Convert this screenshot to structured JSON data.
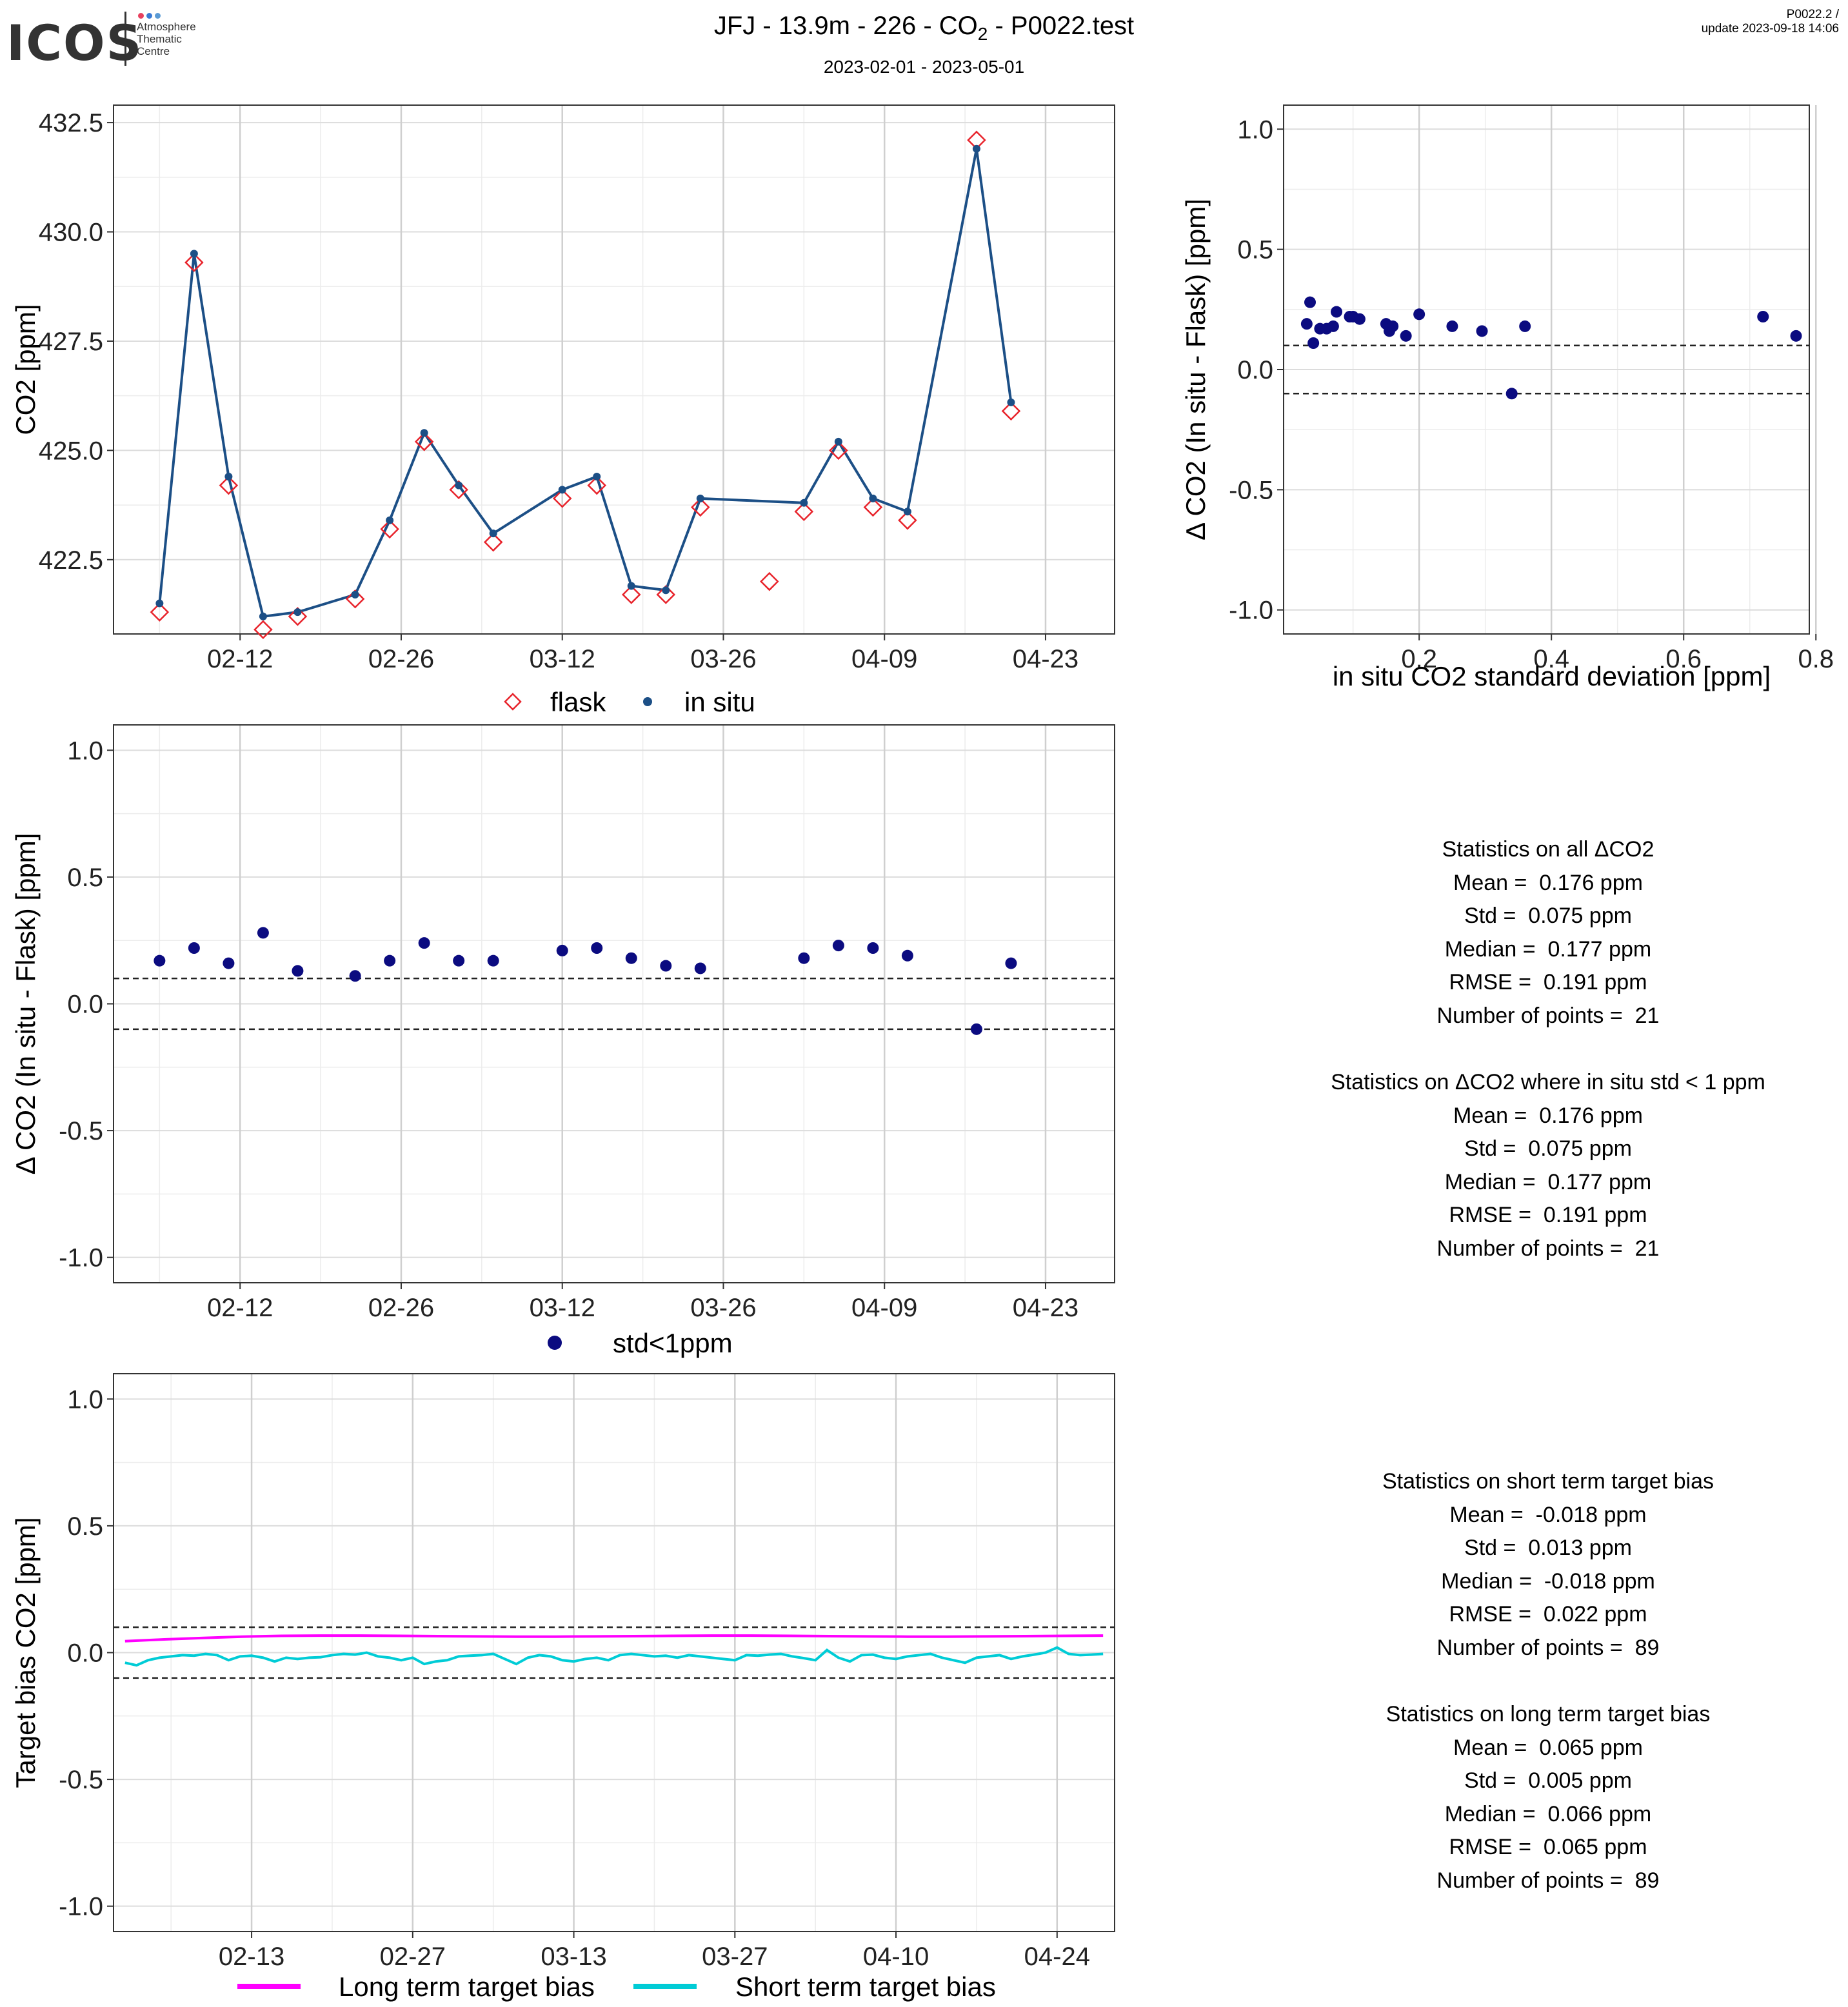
{
  "header": {
    "logo": "ICOS",
    "logo_sub": [
      "Atmosphere",
      "Thematic",
      "Centre"
    ],
    "title_prefix": "JFJ - 13.9m - 226 - CO",
    "title_subscript": "2",
    "title_suffix": " - P0022.test",
    "subtitle": "2023-02-01 - 2023-05-01",
    "corner_line1": "P0022.2 /",
    "corner_line2": "update  2023-09-18 14:06"
  },
  "colors": {
    "flask": "#e8232b",
    "insitu": "#1c4f86",
    "delta": "#0b0b80",
    "long_term": "#ff00ff",
    "short_term": "#00ccd6",
    "logo_dots": [
      "#e8415f",
      "#3a7bd5",
      "#5b9bd5"
    ]
  },
  "chart_data": [
    {
      "id": "timeseries",
      "type": "line",
      "ylabel": "CO2 [ppm]",
      "xlabel": "",
      "ylim": [
        420.8,
        432.9
      ],
      "yticks": [
        422.5,
        425.0,
        427.5,
        430.0,
        432.5
      ],
      "xlim": [
        "2023-02-01",
        "2023-04-29"
      ],
      "xticks": [
        "02-12",
        "02-26",
        "03-12",
        "03-26",
        "04-09",
        "04-23"
      ],
      "grid": true,
      "legend_position": "bottom",
      "series": [
        {
          "name": "flask",
          "marker": "open-diamond",
          "x": [
            "2023-02-05",
            "2023-02-08",
            "2023-02-11",
            "2023-02-14",
            "2023-02-17",
            "2023-02-22",
            "2023-02-25",
            "2023-02-28",
            "2023-03-03",
            "2023-03-06",
            "2023-03-12",
            "2023-03-15",
            "2023-03-18",
            "2023-03-21",
            "2023-03-24",
            "2023-03-30",
            "2023-04-02",
            "2023-04-05",
            "2023-04-08",
            "2023-04-11",
            "2023-04-17",
            "2023-04-20"
          ],
          "y": [
            421.3,
            429.3,
            424.2,
            420.9,
            421.2,
            421.6,
            423.2,
            425.2,
            424.1,
            422.9,
            423.9,
            424.2,
            421.7,
            421.7,
            423.7,
            422.0,
            423.6,
            425.0,
            423.7,
            423.4,
            432.1,
            425.9
          ]
        },
        {
          "name": "in situ",
          "marker": "filled-dot-line",
          "x": [
            "2023-02-05",
            "2023-02-08",
            "2023-02-11",
            "2023-02-14",
            "2023-02-17",
            "2023-02-22",
            "2023-02-25",
            "2023-02-28",
            "2023-03-03",
            "2023-03-06",
            "2023-03-12",
            "2023-03-15",
            "2023-03-18",
            "2023-03-21",
            "2023-03-24",
            "2023-04-02",
            "2023-04-05",
            "2023-04-08",
            "2023-04-11",
            "2023-04-17",
            "2023-04-20"
          ],
          "y": [
            421.5,
            429.5,
            424.4,
            421.2,
            421.3,
            421.7,
            423.4,
            425.4,
            424.2,
            423.1,
            424.1,
            424.4,
            421.9,
            421.8,
            423.9,
            423.8,
            425.2,
            423.9,
            423.6,
            431.9,
            426.1
          ]
        }
      ]
    },
    {
      "id": "scatter_std",
      "type": "scatter",
      "xlabel": "in situ CO2 standard deviation [ppm]",
      "ylabel": "Δ CO2 (In situ - Flask) [ppm]",
      "xlim": [
        -0.005,
        0.79
      ],
      "ylim": [
        -1.1,
        1.1
      ],
      "xticks": [
        0.2,
        0.4,
        0.6,
        0.8
      ],
      "yticks": [
        -1.0,
        -0.5,
        0.0,
        0.5,
        1.0
      ],
      "hlines": [
        0.1,
        -0.1
      ],
      "grid": true,
      "points": [
        [
          0.03,
          0.19
        ],
        [
          0.035,
          0.28
        ],
        [
          0.04,
          0.11
        ],
        [
          0.05,
          0.17
        ],
        [
          0.06,
          0.17
        ],
        [
          0.07,
          0.18
        ],
        [
          0.075,
          0.24
        ],
        [
          0.095,
          0.22
        ],
        [
          0.1,
          0.22
        ],
        [
          0.11,
          0.21
        ],
        [
          0.15,
          0.19
        ],
        [
          0.155,
          0.16
        ],
        [
          0.16,
          0.18
        ],
        [
          0.18,
          0.14
        ],
        [
          0.2,
          0.23
        ],
        [
          0.25,
          0.18
        ],
        [
          0.295,
          0.16
        ],
        [
          0.34,
          -0.1
        ],
        [
          0.36,
          0.18
        ],
        [
          0.72,
          0.22
        ],
        [
          0.77,
          0.14
        ]
      ]
    },
    {
      "id": "delta_time",
      "type": "scatter",
      "ylabel": "Δ CO2 (In situ - Flask) [ppm]",
      "xlabel": "",
      "xlim": [
        "2023-02-01",
        "2023-04-29"
      ],
      "ylim": [
        -1.1,
        1.1
      ],
      "xticks": [
        "02-12",
        "02-26",
        "03-12",
        "03-26",
        "04-09",
        "04-23"
      ],
      "yticks": [
        -1.0,
        -0.5,
        0.0,
        0.5,
        1.0
      ],
      "hlines": [
        0.1,
        -0.1
      ],
      "grid": true,
      "legend_position": "bottom",
      "series": [
        {
          "name": "std<1ppm",
          "x": [
            "2023-02-05",
            "2023-02-08",
            "2023-02-11",
            "2023-02-14",
            "2023-02-17",
            "2023-02-22",
            "2023-02-25",
            "2023-02-28",
            "2023-03-03",
            "2023-03-06",
            "2023-03-12",
            "2023-03-15",
            "2023-03-18",
            "2023-03-21",
            "2023-03-24",
            "2023-04-02",
            "2023-04-05",
            "2023-04-08",
            "2023-04-11",
            "2023-04-17",
            "2023-04-20"
          ],
          "y": [
            0.17,
            0.22,
            0.16,
            0.28,
            0.13,
            0.11,
            0.17,
            0.24,
            0.17,
            0.17,
            0.21,
            0.22,
            0.18,
            0.15,
            0.14,
            0.18,
            0.23,
            0.22,
            0.19,
            -0.1,
            0.16
          ]
        }
      ]
    },
    {
      "id": "target_bias",
      "type": "line",
      "ylabel": "Target bias CO2 [ppm]",
      "xlabel": "",
      "xlim": [
        "2023-02-01",
        "2023-04-29"
      ],
      "ylim": [
        -1.1,
        1.1
      ],
      "xticks": [
        "02-13",
        "02-27",
        "03-13",
        "03-27",
        "04-10",
        "04-24"
      ],
      "yticks": [
        -1.0,
        -0.5,
        0.0,
        0.5,
        1.0
      ],
      "hlines": [
        0.1,
        -0.1
      ],
      "grid": true,
      "legend_position": "bottom",
      "series": [
        {
          "name": "Long term target bias",
          "x_start": "2023-02-02",
          "x_end": "2023-04-28",
          "y": [
            0.045,
            0.052,
            0.058,
            0.063,
            0.066,
            0.067,
            0.067,
            0.066,
            0.065,
            0.064,
            0.063,
            0.063,
            0.064,
            0.065,
            0.066,
            0.067,
            0.067,
            0.066,
            0.065,
            0.064,
            0.063,
            0.063,
            0.064,
            0.065,
            0.066,
            0.067
          ]
        },
        {
          "name": "Short term target bias",
          "x_start": "2023-02-02",
          "x_end": "2023-04-28",
          "y": [
            -0.04,
            -0.05,
            -0.03,
            -0.02,
            -0.015,
            -0.01,
            -0.012,
            -0.005,
            -0.01,
            -0.03,
            -0.015,
            -0.012,
            -0.02,
            -0.035,
            -0.02,
            -0.025,
            -0.02,
            -0.018,
            -0.01,
            -0.005,
            -0.008,
            0.0,
            -0.015,
            -0.02,
            -0.03,
            -0.02,
            -0.045,
            -0.035,
            -0.03,
            -0.015,
            -0.012,
            -0.01,
            -0.005,
            -0.025,
            -0.045,
            -0.02,
            -0.01,
            -0.015,
            -0.03,
            -0.035,
            -0.025,
            -0.02,
            -0.03,
            -0.01,
            -0.005,
            -0.01,
            -0.015,
            -0.012,
            -0.02,
            -0.01,
            -0.015,
            -0.02,
            -0.025,
            -0.03,
            -0.01,
            -0.012,
            -0.008,
            -0.005,
            -0.015,
            -0.022,
            -0.03,
            0.01,
            -0.02,
            -0.035,
            -0.01,
            -0.008,
            -0.02,
            -0.025,
            -0.015,
            -0.01,
            -0.005,
            -0.02,
            -0.03,
            -0.04,
            -0.02,
            -0.015,
            -0.01,
            -0.025,
            -0.015,
            -0.008,
            0.0,
            0.02,
            -0.005,
            -0.01,
            -0.008,
            -0.005
          ]
        }
      ]
    }
  ],
  "stats": {
    "block1": {
      "title": "Statistics on all ΔCO2",
      "lines": [
        "Mean =  0.176 ppm",
        "Std =  0.075 ppm",
        "Median =  0.177 ppm",
        "RMSE =  0.191 ppm",
        "Number of points =  21"
      ]
    },
    "block2": {
      "title": "Statistics on ΔCO2 where in situ std < 1 ppm",
      "lines": [
        "Mean =  0.176 ppm",
        "Std =  0.075 ppm",
        "Median =  0.177 ppm",
        "RMSE =  0.191 ppm",
        "Number of points =  21"
      ]
    },
    "block3": {
      "title": "Statistics on short term target bias",
      "lines": [
        "Mean =  -0.018 ppm",
        "Std =  0.013 ppm",
        "Median =  -0.018 ppm",
        "RMSE =  0.022 ppm",
        "Number of points =  89"
      ]
    },
    "block4": {
      "title": "Statistics on long term target bias",
      "lines": [
        "Mean =  0.065 ppm",
        "Std =  0.005 ppm",
        "Median =  0.066 ppm",
        "RMSE =  0.065 ppm",
        "Number of points =  89"
      ]
    }
  }
}
